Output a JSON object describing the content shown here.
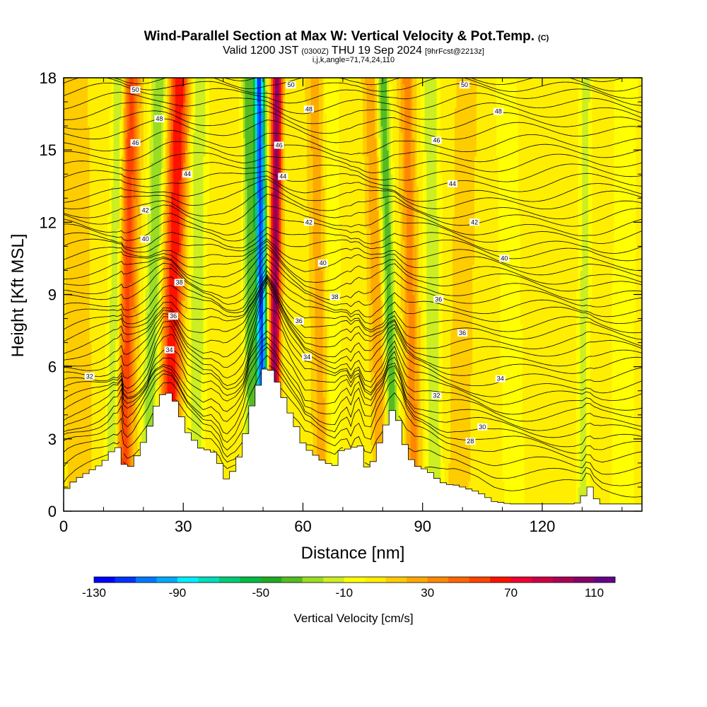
{
  "chart_data": {
    "type": "heatmap",
    "title": "Wind-Parallel Section at Max W: Vertical Velocity & Pot.Temp.",
    "title_suffix": "(C)",
    "subtitle": {
      "prefix": "Valid 1200 JST",
      "utc": "(0300Z)",
      "date": "THU 19 Sep 2024",
      "forecast": "[9hrFcst@2213z]"
    },
    "section_info": "i,j,k,angle=71,74,24,110",
    "xlabel": "Distance [nm]",
    "ylabel": "Height [Kft MSL]",
    "xlim": [
      0,
      145
    ],
    "ylim": [
      0,
      18
    ],
    "x_ticks": [
      0,
      30,
      60,
      90,
      120
    ],
    "y_ticks": [
      0,
      3,
      6,
      9,
      12,
      15,
      18
    ],
    "grid": false,
    "colorbar": {
      "label": "Vertical Velocity [cm/s]",
      "placement": "bottom",
      "min": -130,
      "max": 120,
      "step": 10,
      "tick_labels": [
        -130,
        -90,
        -50,
        -10,
        30,
        70,
        110
      ],
      "colors": [
        "#0000ff",
        "#0033ff",
        "#0077ff",
        "#00aaff",
        "#00eeff",
        "#00ddbb",
        "#00cc77",
        "#00bb44",
        "#22aa22",
        "#55bb22",
        "#99dd22",
        "#ccee22",
        "#ffff00",
        "#ffee00",
        "#ffcc00",
        "#ffaa00",
        "#ff8800",
        "#ff6600",
        "#ff4400",
        "#ff1100",
        "#ee0033",
        "#cc0044",
        "#aa0055",
        "#880066",
        "#660088"
      ]
    },
    "background_value": 5,
    "updraft_bands": [
      {
        "x_bottom": 15,
        "x_top": 17,
        "peak": 50,
        "width": 2.2
      },
      {
        "x_bottom": 26,
        "x_top": 29,
        "peak": 65,
        "width": 2.4
      },
      {
        "x_bottom": 52.5,
        "x_top": 53.5,
        "peak": 100,
        "width": 1.3
      },
      {
        "x_bottom": 65,
        "x_top": 63,
        "peak": 20,
        "width": 2.0
      },
      {
        "x_bottom": 80,
        "x_top": 77,
        "peak": 25,
        "width": 1.8
      },
      {
        "x_bottom": 88,
        "x_top": 86,
        "peak": 30,
        "width": 1.8
      },
      {
        "x_bottom": 99,
        "x_top": 101,
        "peak": 15,
        "width": 2.5
      },
      {
        "x_bottom": 4,
        "x_top": 3,
        "peak": 15,
        "width": 3.0
      }
    ],
    "downdraft_bands": [
      {
        "x_bottom": 12,
        "x_top": 14,
        "peak": -30,
        "width": 1.6
      },
      {
        "x_bottom": 21,
        "x_top": 24,
        "peak": -35,
        "width": 2.0
      },
      {
        "x_bottom": 33,
        "x_top": 34,
        "peak": -25,
        "width": 2.0
      },
      {
        "x_bottom": 50,
        "x_top": 49,
        "peak": -120,
        "width": 1.4
      },
      {
        "x_bottom": 47,
        "x_top": 46,
        "peak": -40,
        "width": 1.3
      },
      {
        "x_bottom": 68,
        "x_top": 67,
        "peak": -15,
        "width": 1.8
      },
      {
        "x_bottom": 83,
        "x_top": 80,
        "peak": -45,
        "width": 1.5
      },
      {
        "x_bottom": 93,
        "x_top": 92,
        "peak": -25,
        "width": 2.0
      },
      {
        "x_bottom": 113,
        "x_top": 111,
        "peak": -15,
        "width": 2.5
      },
      {
        "x_bottom": 130,
        "x_top": 131,
        "peak": -20,
        "width": 1.5
      },
      {
        "x_bottom": 140,
        "x_top": 141,
        "peak": -12,
        "width": 3.0
      }
    ],
    "terrain": {
      "x": [
        0,
        1,
        3,
        6,
        9,
        11,
        12.5,
        13.5,
        14.5,
        15,
        16,
        17.5,
        19,
        21,
        23,
        25,
        27,
        28.5,
        31,
        33,
        35,
        37,
        39,
        40,
        41,
        43,
        45,
        46.5,
        48,
        49.5,
        51,
        53,
        55,
        57,
        59,
        60.5,
        62,
        64,
        66,
        68,
        69.5,
        71,
        72,
        73,
        74,
        75.5,
        77,
        78.5,
        80,
        81.5,
        83,
        84.5,
        86,
        88,
        90,
        92,
        94,
        96,
        98,
        100,
        102,
        104,
        108,
        112,
        116,
        120,
        124,
        128,
        130,
        131,
        132,
        133,
        135,
        138,
        141,
        145
      ],
      "h": [
        0.7,
        1.0,
        1.3,
        1.6,
        1.9,
        2.2,
        2.6,
        2.6,
        3.0,
        2.0,
        1.7,
        2.0,
        2.5,
        3.2,
        4.3,
        4.9,
        4.9,
        4.4,
        3.3,
        2.9,
        2.5,
        2.6,
        2.1,
        1.5,
        1.3,
        1.8,
        2.7,
        4.0,
        4.8,
        5.6,
        6.1,
        5.6,
        4.8,
        4.0,
        3.3,
        2.6,
        2.5,
        2.2,
        2.0,
        1.9,
        2.5,
        2.7,
        2.1,
        2.8,
        3.0,
        1.9,
        1.7,
        2.6,
        3.1,
        4.0,
        4.3,
        3.5,
        2.5,
        1.9,
        1.8,
        1.6,
        1.3,
        1.1,
        1.1,
        1.0,
        0.9,
        0.8,
        0.4,
        0.3,
        0.3,
        0.3,
        0.3,
        0.3,
        0.4,
        1.0,
        1.0,
        0.6,
        0.3,
        0.3,
        0.3,
        0.3
      ]
    },
    "theta_contours": {
      "levels": [
        27,
        27.5,
        28,
        28.5,
        29,
        29.5,
        30,
        30.5,
        31,
        31.5,
        32,
        32.5,
        33,
        33.5,
        34,
        34.5,
        35,
        35.5,
        36,
        36.5,
        37,
        37.5,
        38,
        38.5,
        39,
        39.5,
        40,
        40.5,
        41,
        41.5,
        42,
        42.5,
        43,
        43.5,
        44,
        44.5,
        45,
        45.5,
        46,
        46.5,
        47,
        47.5,
        48,
        48.5,
        49,
        49.5,
        50,
        50.5
      ],
      "base_height_kft": [
        0.8,
        1.3,
        1.8,
        2.3,
        2.7,
        3.0,
        3.4,
        3.7,
        4.1,
        4.4,
        4.8,
        5.1,
        5.5,
        5.9,
        6.2,
        6.6,
        6.9,
        7.3,
        7.6,
        8.0,
        8.3,
        8.7,
        9.0,
        9.4,
        9.7,
        10.1,
        10.4,
        10.8,
        11.1,
        11.5,
        11.8,
        12.2,
        12.5,
        12.9,
        13.2,
        13.6,
        14.0,
        14.4,
        14.8,
        15.2,
        15.7,
        16.1,
        16.5,
        16.9,
        17.3,
        17.6,
        17.9,
        18.3
      ],
      "labels": [
        {
          "text": "50",
          "x": 18,
          "y": 17.5
        },
        {
          "text": "50",
          "x": 57,
          "y": 17.7
        },
        {
          "text": "50",
          "x": 100.5,
          "y": 17.7
        },
        {
          "text": "48",
          "x": 24,
          "y": 16.3
        },
        {
          "text": "48",
          "x": 61.5,
          "y": 16.7
        },
        {
          "text": "48",
          "x": 109,
          "y": 16.6
        },
        {
          "text": "46",
          "x": 18,
          "y": 15.3
        },
        {
          "text": "46",
          "x": 54,
          "y": 15.2
        },
        {
          "text": "46",
          "x": 93.5,
          "y": 15.4
        },
        {
          "text": "44",
          "x": 31,
          "y": 14.0
        },
        {
          "text": "44",
          "x": 55,
          "y": 13.9
        },
        {
          "text": "44",
          "x": 97.5,
          "y": 13.6
        },
        {
          "text": "42",
          "x": 20.5,
          "y": 12.5
        },
        {
          "text": "42",
          "x": 61.5,
          "y": 12.0
        },
        {
          "text": "42",
          "x": 103,
          "y": 12.0
        },
        {
          "text": "40",
          "x": 20.5,
          "y": 11.3
        },
        {
          "text": "40",
          "x": 65,
          "y": 10.3
        },
        {
          "text": "40",
          "x": 110.5,
          "y": 10.5
        },
        {
          "text": "38",
          "x": 29,
          "y": 9.5
        },
        {
          "text": "38",
          "x": 68,
          "y": 8.9
        },
        {
          "text": "36",
          "x": 27.5,
          "y": 8.1
        },
        {
          "text": "36",
          "x": 59,
          "y": 7.9
        },
        {
          "text": "36",
          "x": 94,
          "y": 8.8
        },
        {
          "text": "36",
          "x": 100,
          "y": 7.4
        },
        {
          "text": "34",
          "x": 26.5,
          "y": 6.7
        },
        {
          "text": "34",
          "x": 61,
          "y": 6.4
        },
        {
          "text": "34",
          "x": 109.5,
          "y": 5.5
        },
        {
          "text": "32",
          "x": 6.5,
          "y": 5.6
        },
        {
          "text": "32",
          "x": 93.5,
          "y": 4.8
        },
        {
          "text": "30",
          "x": 105,
          "y": 3.5
        },
        {
          "text": "28",
          "x": 102,
          "y": 2.9
        }
      ]
    }
  }
}
